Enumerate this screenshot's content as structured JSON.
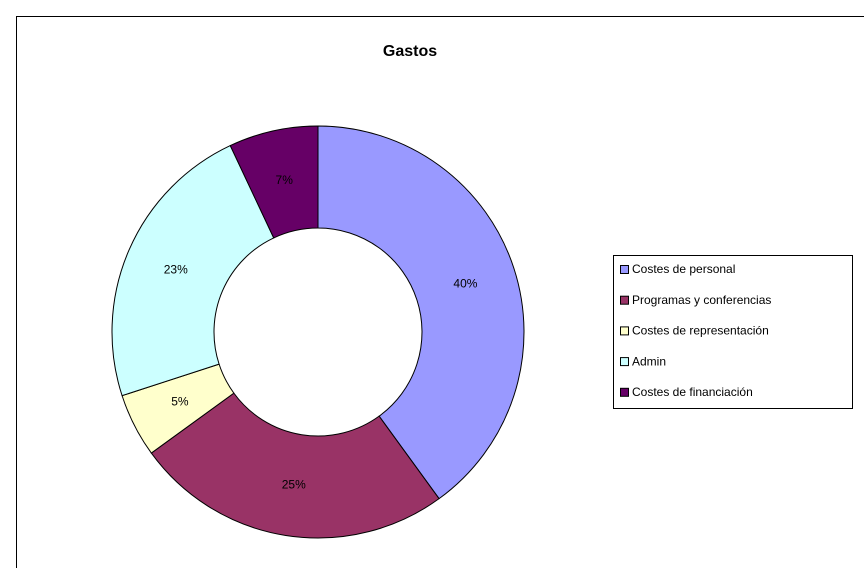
{
  "chart_data": {
    "type": "pie",
    "title": "Gastos",
    "categories": [
      "Costes de personal",
      "Programas y conferencias",
      "Costes de representación",
      "Admin",
      "Costes de financiación"
    ],
    "values": [
      40,
      25,
      5,
      23,
      7
    ],
    "value_labels": [
      "40%",
      "25%",
      "5%",
      "23%",
      "7%"
    ],
    "colors": [
      "#9999ff",
      "#993366",
      "#ffffcc",
      "#ccffff",
      "#660066"
    ],
    "legend": "right"
  }
}
